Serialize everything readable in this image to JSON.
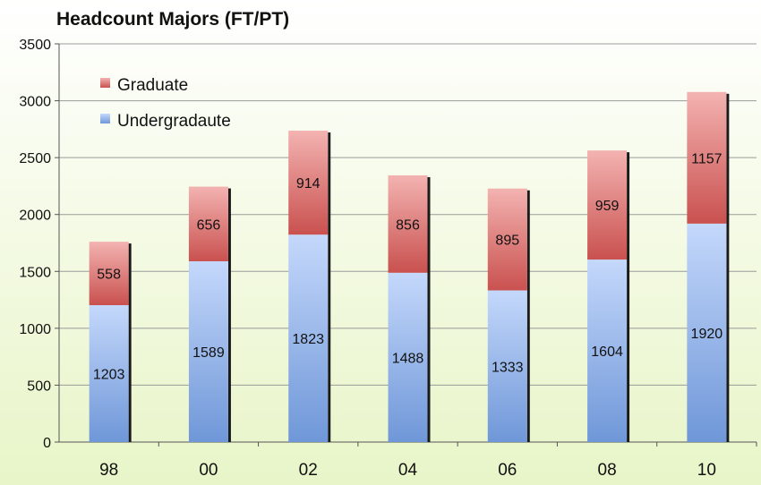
{
  "chart_data": {
    "type": "bar",
    "stacked": true,
    "title": "Headcount Majors (FT/PT)",
    "xlabel": "",
    "ylabel": "",
    "categories": [
      "98",
      "00",
      "02",
      "04",
      "06",
      "08",
      "10"
    ],
    "series": [
      {
        "name": "Undergradaute",
        "values": [
          1203,
          1589,
          1823,
          1488,
          1333,
          1604,
          1920
        ],
        "color": "#8aaee6"
      },
      {
        "name": "Graduate",
        "values": [
          558,
          656,
          914,
          856,
          895,
          959,
          1157
        ],
        "color": "#d96a6a"
      }
    ],
    "ylim": [
      0,
      3500
    ],
    "yticks": [
      0,
      500,
      1000,
      1500,
      2000,
      2500,
      3000,
      3500
    ],
    "grid": true,
    "legend": "top-left",
    "colors": {
      "undergraduate": "#8aaee6",
      "graduate": "#d96a6a",
      "background_top": "#ffffff",
      "background_bottom": "#e8f5c8",
      "gridline": "#9a9a9a"
    }
  }
}
